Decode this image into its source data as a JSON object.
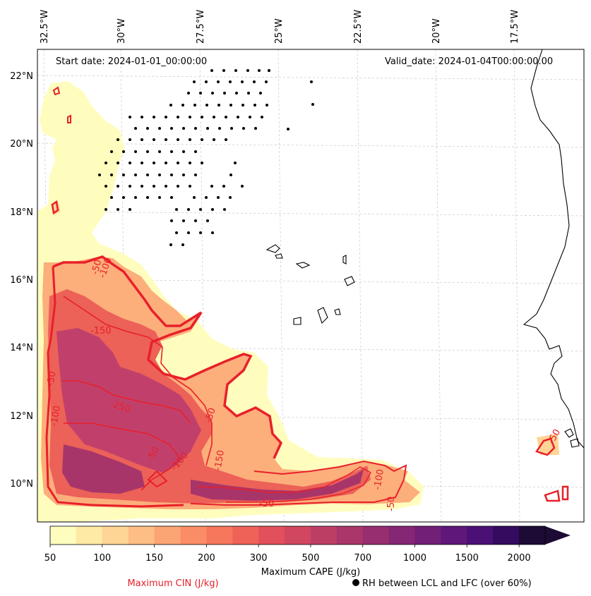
{
  "map": {
    "start_date": "Start date: 2024-01-01_00:00:00",
    "valid_date": "Valid_date: 2024-01-04T00:00:00.00",
    "lon_labels": [
      "32.5°W",
      "30°W",
      "27.5°W",
      "25°W",
      "22.5°W",
      "20°W",
      "17.5°W"
    ],
    "lat_labels": [
      "22°N",
      "20°N",
      "18°N",
      "16°N",
      "14°N",
      "12°N",
      "10°N"
    ],
    "contour_labels": [
      "-50",
      "-100",
      "-150",
      "-250",
      "-100",
      "-50",
      "-150",
      "-50",
      "-100",
      "-50",
      "-100",
      "-50",
      "-50",
      "-50"
    ],
    "colors": {
      "cin": "#e8202a",
      "coast": "#000000",
      "grid": "#c8c8c8"
    }
  },
  "colorbar": {
    "ticks": [
      "50",
      "100",
      "150",
      "200",
      "300",
      "500",
      "700",
      "1000",
      "1500",
      "2000"
    ],
    "title": "Maximum CAPE (J/kg)",
    "colors": [
      "#fffdbe",
      "#fee9a5",
      "#fed594",
      "#fdbd84",
      "#fca574",
      "#fb8d66",
      "#f6775c",
      "#ee6258",
      "#e1505b",
      "#d0475f",
      "#bd3e65",
      "#aa366a",
      "#972e70",
      "#852774",
      "#721f77",
      "#5f1779",
      "#4a1075",
      "#340b5e",
      "#1d0b35"
    ]
  },
  "legend": {
    "cin": "Maximum CIN (J/kg)",
    "rh": "RH between LCL and LFC (over 60%)"
  }
}
